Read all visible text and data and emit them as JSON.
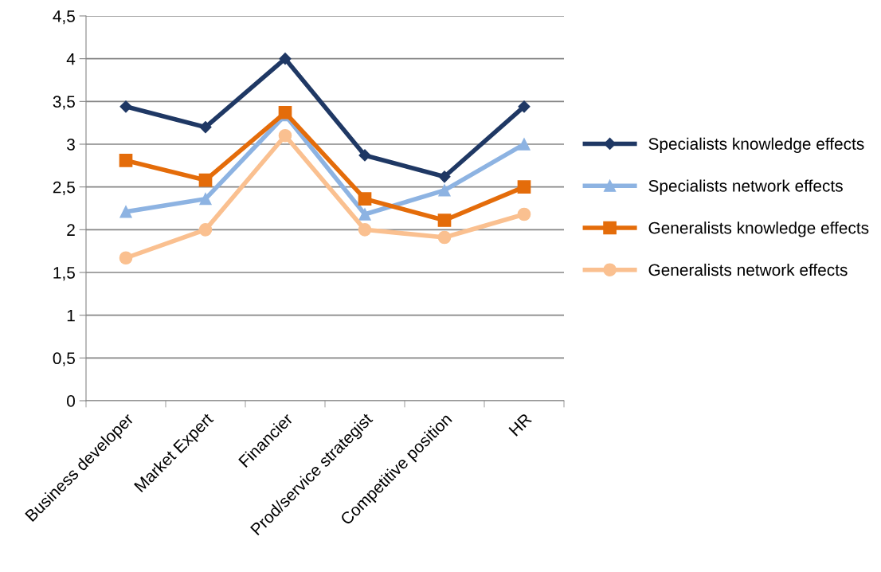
{
  "chart_data": {
    "type": "line",
    "categories": [
      "Business developer",
      "Market Expert",
      "Financier",
      "Prod/service strategist",
      "Competitive position",
      "HR"
    ],
    "series": [
      {
        "name": "Specialists knowledge effects",
        "color": "#1f3864",
        "marker": "diamond",
        "values": [
          3.44,
          3.2,
          4.0,
          2.87,
          2.62,
          3.44
        ]
      },
      {
        "name": "Specialists network effects",
        "color": "#8db3e2",
        "marker": "triangle",
        "values": [
          2.21,
          2.36,
          3.34,
          2.18,
          2.46,
          3.0
        ]
      },
      {
        "name": "Generalists knowledge effects",
        "color": "#e46c0a",
        "marker": "square",
        "values": [
          2.81,
          2.58,
          3.37,
          2.36,
          2.11,
          2.5
        ]
      },
      {
        "name": "Generalists network effects",
        "color": "#fac090",
        "marker": "circle",
        "values": [
          1.67,
          2.0,
          3.1,
          2.0,
          1.91,
          2.18
        ]
      }
    ],
    "ylim": [
      0,
      4.5
    ],
    "yticks": [
      0,
      {
        "value": 0.5,
        "label": "0,5"
      },
      1,
      {
        "value": 1.5,
        "label": "1,5"
      },
      2,
      {
        "value": 2.5,
        "label": "2,5"
      },
      3,
      {
        "value": 3.5,
        "label": "3,5"
      },
      4,
      {
        "value": 4.5,
        "label": "4,5"
      }
    ],
    "grid": "y",
    "legend": "right",
    "line_style": "solid"
  }
}
